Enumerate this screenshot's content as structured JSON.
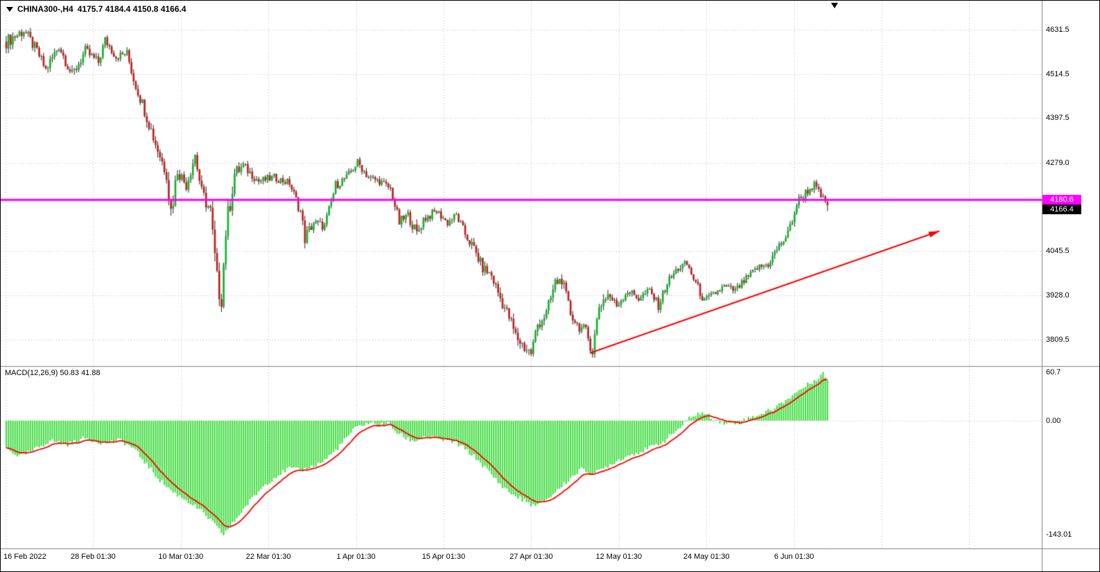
{
  "window": {
    "symbol": "CHINA300-,H4",
    "ohlc_text": "4175.7 4184.4 4150.8 4166.4"
  },
  "macd_panel": {
    "label": "MACD(12,26,9)",
    "values": "50.83 41.88"
  },
  "price_tags": {
    "line_price": "4180.6",
    "current_price": "4166.4"
  },
  "colors": {
    "up": "#0FB52B",
    "down": "#C41E1E",
    "wick": "#222222",
    "hist": "#47DD47",
    "signal": "#FF0000",
    "line": "#FF00FF",
    "grid": "#B9B9B9",
    "arrow": "#FF0000",
    "separator": "#808080"
  },
  "chart_data": {
    "type": "candlestick",
    "symbol": "CHINA300-",
    "timeframe": "H4",
    "current_bar": {
      "open": 4175.7,
      "high": 4184.4,
      "low": 4150.8,
      "close": 4166.4
    },
    "horizontal_line": 4180.6,
    "bar_count": 375,
    "price_axis": {
      "labels": [
        "4631.5",
        "4514.5",
        "4397.5",
        "4279.0",
        "4045.5",
        "3928.0",
        "3809.5"
      ],
      "range": [
        3740,
        4672
      ]
    },
    "macd_axis": {
      "labels": [
        "60.7",
        "0.00",
        "-143.01"
      ],
      "range": [
        -160,
        67
      ]
    },
    "time_axis": {
      "labels": [
        "16 Feb 2022",
        "28 Feb 01:30",
        "10 Mar 01:30",
        "22 Mar 01:30",
        "1 Apr 01:30",
        "15 Apr 01:30",
        "27 Apr 01:30",
        "12 May 01:30",
        "24 May 01:30",
        "6 Jun 01:30"
      ]
    },
    "price_keypoints_format": "[bar_index, price, volatility]",
    "price_keypoints": [
      [
        0,
        4600,
        45
      ],
      [
        8,
        4630,
        40
      ],
      [
        14,
        4575,
        35
      ],
      [
        18,
        4525,
        35
      ],
      [
        24,
        4590,
        35
      ],
      [
        30,
        4510,
        40
      ],
      [
        36,
        4575,
        35
      ],
      [
        42,
        4545,
        30
      ],
      [
        45,
        4605,
        30
      ],
      [
        50,
        4560,
        28
      ],
      [
        55,
        4570,
        24
      ],
      [
        58,
        4500,
        35
      ],
      [
        63,
        4420,
        45
      ],
      [
        68,
        4330,
        45
      ],
      [
        73,
        4250,
        45
      ],
      [
        75,
        4150,
        95
      ],
      [
        78,
        4260,
        45
      ],
      [
        82,
        4220,
        38
      ],
      [
        86,
        4300,
        48
      ],
      [
        89,
        4200,
        45
      ],
      [
        93,
        4150,
        55
      ],
      [
        96,
        3960,
        95
      ],
      [
        98,
        3920,
        65
      ],
      [
        100,
        4100,
        85
      ],
      [
        104,
        4250,
        50
      ],
      [
        108,
        4270,
        32
      ],
      [
        115,
        4230,
        26
      ],
      [
        122,
        4240,
        26
      ],
      [
        129,
        4225,
        26
      ],
      [
        134,
        4150,
        38
      ],
      [
        136,
        4080,
        48
      ],
      [
        140,
        4120,
        32
      ],
      [
        145,
        4110,
        30
      ],
      [
        150,
        4220,
        32
      ],
      [
        155,
        4240,
        26
      ],
      [
        160,
        4280,
        26
      ],
      [
        165,
        4240,
        26
      ],
      [
        170,
        4230,
        24
      ],
      [
        175,
        4210,
        24
      ],
      [
        179,
        4120,
        38
      ],
      [
        183,
        4140,
        30
      ],
      [
        187,
        4090,
        42
      ],
      [
        190,
        4130,
        32
      ],
      [
        196,
        4150,
        26
      ],
      [
        201,
        4120,
        26
      ],
      [
        205,
        4140,
        24
      ],
      [
        209,
        4090,
        32
      ],
      [
        213,
        4050,
        36
      ],
      [
        217,
        4000,
        36
      ],
      [
        221,
        3980,
        36
      ],
      [
        225,
        3920,
        42
      ],
      [
        229,
        3870,
        42
      ],
      [
        232,
        3820,
        46
      ],
      [
        236,
        3790,
        46
      ],
      [
        239,
        3775,
        36
      ],
      [
        242,
        3850,
        48
      ],
      [
        246,
        3880,
        40
      ],
      [
        250,
        3960,
        42
      ],
      [
        253,
        3970,
        36
      ],
      [
        257,
        3880,
        36
      ],
      [
        260,
        3850,
        36
      ],
      [
        264,
        3830,
        40
      ],
      [
        267,
        3780,
        45
      ],
      [
        270,
        3900,
        46
      ],
      [
        274,
        3930,
        36
      ],
      [
        278,
        3900,
        30
      ],
      [
        283,
        3940,
        30
      ],
      [
        288,
        3920,
        30
      ],
      [
        293,
        3940,
        26
      ],
      [
        297,
        3900,
        30
      ],
      [
        301,
        3960,
        30
      ],
      [
        306,
        4000,
        32
      ],
      [
        310,
        4010,
        30
      ],
      [
        314,
        3960,
        30
      ],
      [
        318,
        3910,
        30
      ],
      [
        322,
        3930,
        26
      ],
      [
        327,
        3950,
        26
      ],
      [
        332,
        3940,
        26
      ],
      [
        337,
        3970,
        26
      ],
      [
        342,
        4000,
        26
      ],
      [
        347,
        4010,
        26
      ],
      [
        351,
        4050,
        30
      ],
      [
        356,
        4090,
        32
      ],
      [
        360,
        4170,
        42
      ],
      [
        364,
        4200,
        30
      ],
      [
        368,
        4220,
        26
      ],
      [
        371,
        4190,
        26
      ],
      [
        374,
        4166.4,
        24
      ]
    ],
    "macd": {
      "params": [
        12,
        26,
        9
      ],
      "main": 50.83,
      "signal": 41.88,
      "keypoints_format": "[bar_index, macd_value]",
      "keypoints": [
        [
          0,
          -35
        ],
        [
          6,
          -45
        ],
        [
          12,
          -38
        ],
        [
          20,
          -25
        ],
        [
          28,
          -30
        ],
        [
          36,
          -22
        ],
        [
          44,
          -28
        ],
        [
          52,
          -25
        ],
        [
          58,
          -35
        ],
        [
          64,
          -55
        ],
        [
          70,
          -75
        ],
        [
          76,
          -90
        ],
        [
          82,
          -100
        ],
        [
          88,
          -112
        ],
        [
          93,
          -125
        ],
        [
          97,
          -138
        ],
        [
          99,
          -143
        ],
        [
          103,
          -130
        ],
        [
          107,
          -115
        ],
        [
          112,
          -98
        ],
        [
          118,
          -80
        ],
        [
          124,
          -68
        ],
        [
          129,
          -60
        ],
        [
          134,
          -63
        ],
        [
          139,
          -58
        ],
        [
          144,
          -52
        ],
        [
          149,
          -40
        ],
        [
          154,
          -25
        ],
        [
          158,
          -12
        ],
        [
          162,
          -5
        ],
        [
          166,
          -3
        ],
        [
          170,
          -6
        ],
        [
          174,
          -4
        ],
        [
          178,
          -15
        ],
        [
          182,
          -22
        ],
        [
          186,
          -26
        ],
        [
          190,
          -20
        ],
        [
          195,
          -22
        ],
        [
          200,
          -25
        ],
        [
          205,
          -28
        ],
        [
          210,
          -38
        ],
        [
          215,
          -50
        ],
        [
          220,
          -65
        ],
        [
          225,
          -80
        ],
        [
          230,
          -92
        ],
        [
          234,
          -98
        ],
        [
          238,
          -104
        ],
        [
          241,
          -108
        ],
        [
          244,
          -103
        ],
        [
          248,
          -95
        ],
        [
          252,
          -85
        ],
        [
          256,
          -75
        ],
        [
          260,
          -65
        ],
        [
          263,
          -60
        ],
        [
          267,
          -68
        ],
        [
          271,
          -62
        ],
        [
          275,
          -55
        ],
        [
          280,
          -48
        ],
        [
          285,
          -42
        ],
        [
          290,
          -38
        ],
        [
          295,
          -32
        ],
        [
          300,
          -25
        ],
        [
          304,
          -15
        ],
        [
          308,
          -6
        ],
        [
          311,
          3
        ],
        [
          314,
          8
        ],
        [
          317,
          10
        ],
        [
          320,
          6
        ],
        [
          323,
          2
        ],
        [
          326,
          -2
        ],
        [
          330,
          -4
        ],
        [
          334,
          -2
        ],
        [
          338,
          3
        ],
        [
          342,
          7
        ],
        [
          346,
          11
        ],
        [
          350,
          16
        ],
        [
          354,
          24
        ],
        [
          358,
          32
        ],
        [
          362,
          40
        ],
        [
          366,
          47
        ],
        [
          370,
          55
        ],
        [
          372,
          60
        ],
        [
          374,
          50.83
        ]
      ]
    },
    "trend_arrow": {
      "from_bar": 266,
      "from_price": 3775,
      "to_bar": 425,
      "to_price": 4098
    }
  }
}
